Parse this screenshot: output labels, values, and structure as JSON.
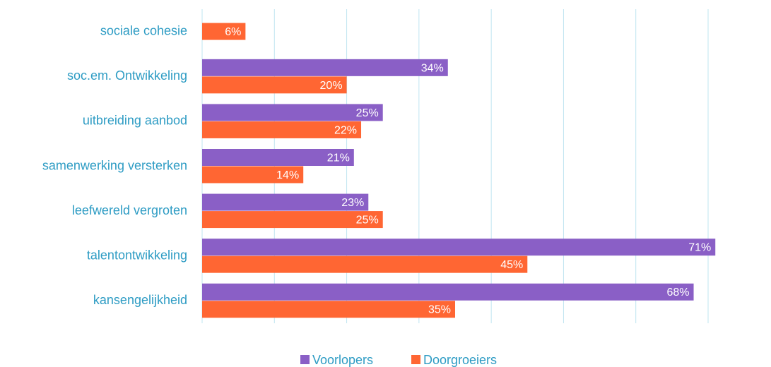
{
  "chart_data": {
    "type": "bar",
    "orientation": "horizontal",
    "categories": [
      "sociale cohesie",
      "soc.em. Ontwikkeling",
      "uitbreiding aanbod",
      "samenwerking versterken",
      "leefwereld vergroten",
      "talentontwikkeling",
      "kansengelijkheid"
    ],
    "series": [
      {
        "name": "Voorlopers",
        "color": "#8a5fc6",
        "values": [
          null,
          34,
          25,
          21,
          23,
          71,
          68
        ],
        "value_labels": [
          null,
          "34%",
          "25%",
          "21%",
          "23%",
          "71%",
          "68%"
        ]
      },
      {
        "name": "Doorgroeiers",
        "color": "#ff6633",
        "values": [
          6,
          20,
          22,
          14,
          25,
          45,
          35
        ],
        "value_labels": [
          "6%",
          "20%",
          "22%",
          "14%",
          "25%",
          "45%",
          "35%"
        ]
      }
    ],
    "xlim": [
      0,
      70
    ],
    "xticks": [
      0,
      10,
      20,
      30,
      40,
      50,
      60,
      70
    ],
    "grid": true,
    "legend": "bottom"
  }
}
